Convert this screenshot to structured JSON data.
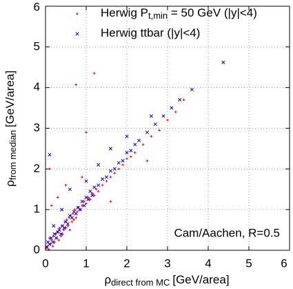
{
  "chart_data": {
    "type": "scatter",
    "x_label": {
      "symbol": "ρ",
      "subscript": "direct from MC",
      "unit": "[GeV/area]"
    },
    "y_label": {
      "symbol": "ρ",
      "subscript": "from median",
      "unit": "[GeV/area]"
    },
    "annotation": "Cam/Aachen, R=0.5",
    "xlim": [
      0,
      6
    ],
    "ylim": [
      0,
      6
    ],
    "xticks": [
      0,
      1,
      2,
      3,
      4,
      5,
      6
    ],
    "yticks": [
      0,
      1,
      2,
      3,
      4,
      5,
      6
    ],
    "grid": true,
    "legend": "top",
    "series": [
      {
        "name": "Herwig P",
        "name_subscript": "t,min",
        "name_suffix": " = 50 GeV (|y|<4)",
        "color": "#ff0000",
        "marker": "plus",
        "x": [
          0.02,
          0.05,
          0.08,
          0.1,
          0.12,
          0.15,
          0.18,
          0.2,
          0.22,
          0.25,
          0.28,
          0.3,
          0.33,
          0.35,
          0.38,
          0.4,
          0.42,
          0.45,
          0.48,
          0.5,
          0.52,
          0.55,
          0.58,
          0.6,
          0.62,
          0.65,
          0.68,
          0.7,
          0.72,
          0.75,
          0.78,
          0.8,
          0.85,
          0.9,
          0.95,
          1.0,
          1.05,
          1.1,
          1.15,
          1.2,
          1.25,
          1.3,
          1.4,
          1.5,
          1.6,
          1.7,
          1.8,
          1.9,
          2.0,
          2.1,
          2.2,
          2.4,
          2.6,
          2.8,
          3.0,
          3.2,
          3.4,
          0.75,
          1.2,
          0.1,
          1.0,
          0.3,
          0.5,
          0.9,
          0.15,
          1.6,
          2.5
        ],
        "values": [
          0.05,
          0.1,
          0.02,
          0.3,
          0.15,
          0.25,
          0.1,
          0.35,
          0.2,
          0.4,
          0.3,
          0.45,
          0.25,
          0.55,
          0.35,
          0.6,
          0.4,
          0.5,
          0.7,
          0.55,
          0.75,
          0.6,
          0.8,
          0.5,
          0.85,
          0.7,
          0.9,
          0.75,
          1.0,
          0.8,
          0.95,
          1.05,
          1.0,
          1.1,
          1.2,
          1.15,
          1.3,
          1.25,
          1.4,
          1.35,
          1.5,
          1.45,
          1.6,
          1.7,
          1.8,
          1.9,
          2.0,
          2.1,
          2.25,
          2.3,
          2.4,
          2.6,
          2.8,
          2.95,
          3.2,
          3.4,
          3.7,
          4.07,
          4.35,
          2.0,
          2.9,
          1.3,
          1.6,
          1.8,
          1.1,
          1.2,
          2.2
        ]
      },
      {
        "name": "Herwig ttbar (|y|<4)",
        "color": "#0000ff",
        "marker": "cross",
        "x": [
          0.03,
          0.06,
          0.1,
          0.14,
          0.18,
          0.22,
          0.26,
          0.3,
          0.34,
          0.38,
          0.42,
          0.46,
          0.5,
          0.55,
          0.6,
          0.65,
          0.7,
          0.75,
          0.8,
          0.85,
          0.9,
          0.95,
          1.0,
          1.05,
          1.1,
          1.15,
          1.2,
          1.3,
          1.4,
          1.5,
          1.6,
          1.7,
          1.8,
          1.9,
          2.0,
          2.1,
          2.2,
          2.3,
          2.5,
          2.7,
          2.9,
          3.1,
          3.3,
          3.6,
          4.37,
          0.1,
          0.6,
          1.3,
          2.0,
          0.4,
          0.2,
          1.0,
          1.6,
          2.6
        ],
        "values": [
          0.08,
          0.2,
          0.15,
          0.3,
          0.2,
          0.4,
          0.3,
          0.45,
          0.5,
          0.4,
          0.6,
          0.55,
          0.7,
          0.65,
          0.85,
          0.8,
          0.95,
          0.9,
          1.05,
          1.0,
          1.2,
          1.1,
          1.3,
          1.25,
          1.45,
          1.35,
          1.55,
          1.6,
          1.75,
          1.8,
          1.95,
          2.0,
          2.15,
          2.2,
          2.4,
          2.45,
          2.6,
          2.7,
          2.9,
          3.1,
          3.3,
          3.5,
          3.7,
          3.95,
          4.62,
          2.35,
          1.5,
          2.1,
          2.8,
          1.0,
          0.6,
          1.7,
          2.5,
          3.3
        ]
      }
    ]
  }
}
